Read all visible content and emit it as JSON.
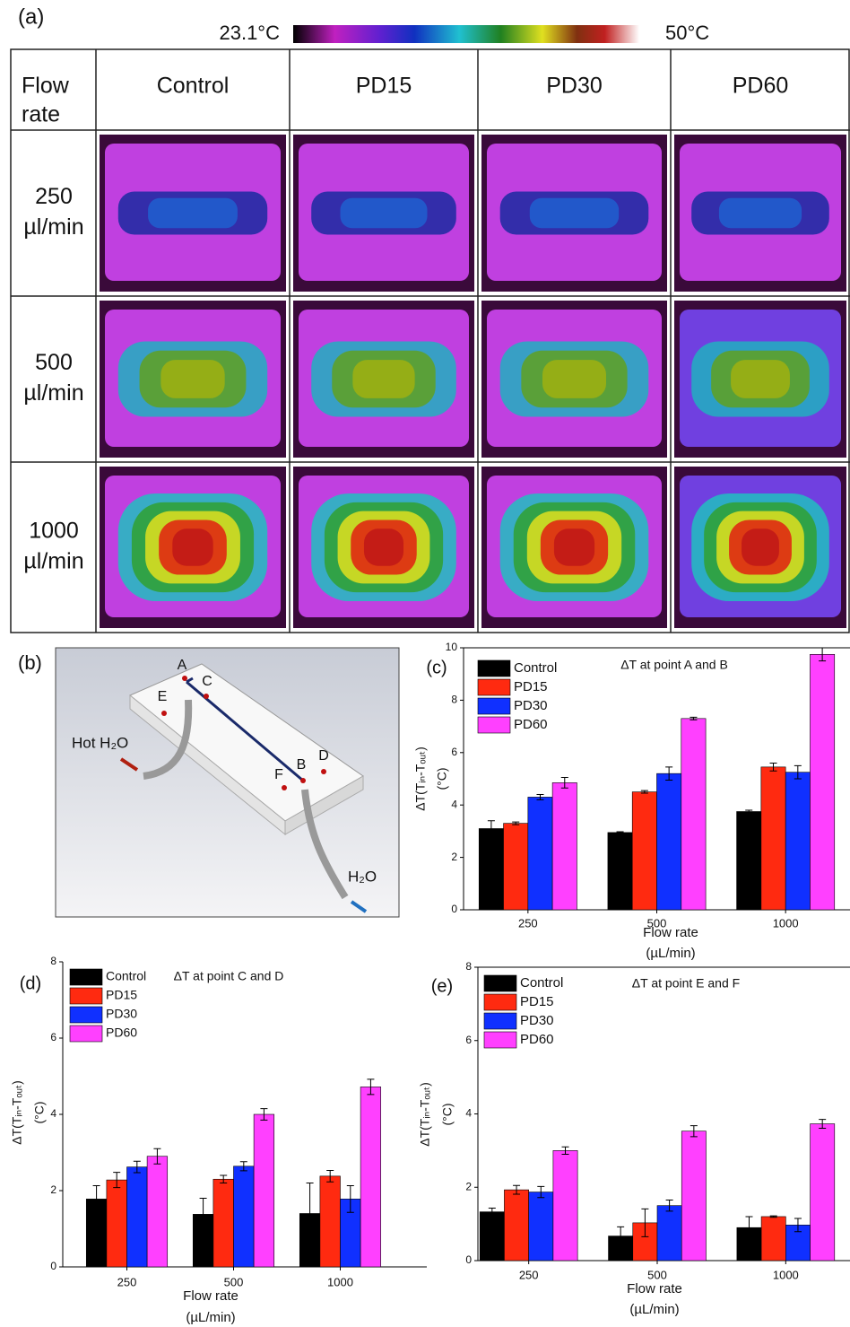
{
  "panel_a": {
    "label": "(a)",
    "colorbar": {
      "min_label": "23.1°C",
      "max_label": "50°C"
    },
    "header": [
      "Flow",
      "rate"
    ],
    "columns": [
      "Control",
      "PD15",
      "PD30",
      "PD60"
    ],
    "rows": [
      [
        "250",
        "µl/min"
      ],
      [
        "500",
        "µl/min"
      ],
      [
        "1000",
        "µl/min"
      ]
    ]
  },
  "panel_b": {
    "label": "(b)",
    "points": [
      "A",
      "B",
      "C",
      "D",
      "E",
      "F"
    ],
    "inlet": "Hot H₂O",
    "outlet": "H₂O"
  },
  "chart_data": [
    {
      "type": "bar",
      "panel_label": "(c)",
      "title": "ΔT at point A and B",
      "x_label": [
        "Flow rate",
        "(µL/min)"
      ],
      "y_label": [
        "ΔT(Tᵢₙ-Tₒᵤₜ)",
        "(°C)"
      ],
      "categories": [
        "250",
        "500",
        "1000"
      ],
      "ylim": [
        0,
        10
      ],
      "yticks": [
        0,
        2,
        4,
        6,
        8,
        10
      ],
      "series": [
        {
          "name": "Control",
          "color": "#000000",
          "values": [
            3.1,
            2.95,
            3.75
          ],
          "errors": [
            0.3,
            0.03,
            0.05
          ]
        },
        {
          "name": "PD15",
          "color": "#ff2a10",
          "values": [
            3.3,
            4.5,
            5.45
          ],
          "errors": [
            0.05,
            0.05,
            0.15
          ]
        },
        {
          "name": "PD30",
          "color": "#1030ff",
          "values": [
            4.3,
            5.2,
            5.25
          ],
          "errors": [
            0.1,
            0.25,
            0.25
          ]
        },
        {
          "name": "PD60",
          "color": "#ff40ff",
          "values": [
            4.85,
            7.3,
            9.75
          ],
          "errors": [
            0.2,
            0.05,
            0.25
          ]
        }
      ]
    },
    {
      "type": "bar",
      "panel_label": "(d)",
      "title": "ΔT at point C and D",
      "x_label": [
        "Flow rate",
        "(µL/min)"
      ],
      "y_label": [
        "ΔT(Tᵢₙ-Tₒᵤₜ)",
        "(°C)"
      ],
      "categories": [
        "250",
        "500",
        "1000"
      ],
      "ylim": [
        0,
        8
      ],
      "yticks": [
        0,
        2,
        4,
        6,
        8
      ],
      "series": [
        {
          "name": "Control",
          "color": "#000000",
          "values": [
            1.78,
            1.38,
            1.4
          ],
          "errors": [
            0.35,
            0.42,
            0.8
          ]
        },
        {
          "name": "PD15",
          "color": "#ff2a10",
          "values": [
            2.28,
            2.3,
            2.38
          ],
          "errors": [
            0.2,
            0.1,
            0.15
          ]
        },
        {
          "name": "PD30",
          "color": "#1030ff",
          "values": [
            2.62,
            2.64,
            1.78
          ],
          "errors": [
            0.15,
            0.12,
            0.35
          ]
        },
        {
          "name": "PD60",
          "color": "#ff40ff",
          "values": [
            2.9,
            4.0,
            4.72
          ],
          "errors": [
            0.2,
            0.15,
            0.2
          ]
        }
      ]
    },
    {
      "type": "bar",
      "panel_label": "(e)",
      "title": "ΔT at point E and F",
      "x_label": [
        "Flow rate",
        "(µL/min)"
      ],
      "y_label": [
        "ΔT(Tᵢₙ-Tₒᵤₜ)",
        "(°C)"
      ],
      "categories": [
        "250",
        "500",
        "1000"
      ],
      "ylim": [
        0,
        8
      ],
      "yticks": [
        0,
        2,
        4,
        6,
        8
      ],
      "series": [
        {
          "name": "Control",
          "color": "#000000",
          "values": [
            1.33,
            0.67,
            0.9
          ],
          "errors": [
            0.1,
            0.25,
            0.3
          ]
        },
        {
          "name": "PD15",
          "color": "#ff2a10",
          "values": [
            1.93,
            1.03,
            1.2
          ],
          "errors": [
            0.12,
            0.38,
            0.02
          ]
        },
        {
          "name": "PD30",
          "color": "#1030ff",
          "values": [
            1.87,
            1.5,
            0.97
          ],
          "errors": [
            0.15,
            0.15,
            0.18
          ]
        },
        {
          "name": "PD60",
          "color": "#ff40ff",
          "values": [
            3.0,
            3.53,
            3.73
          ],
          "errors": [
            0.1,
            0.15,
            0.12
          ]
        }
      ]
    }
  ]
}
